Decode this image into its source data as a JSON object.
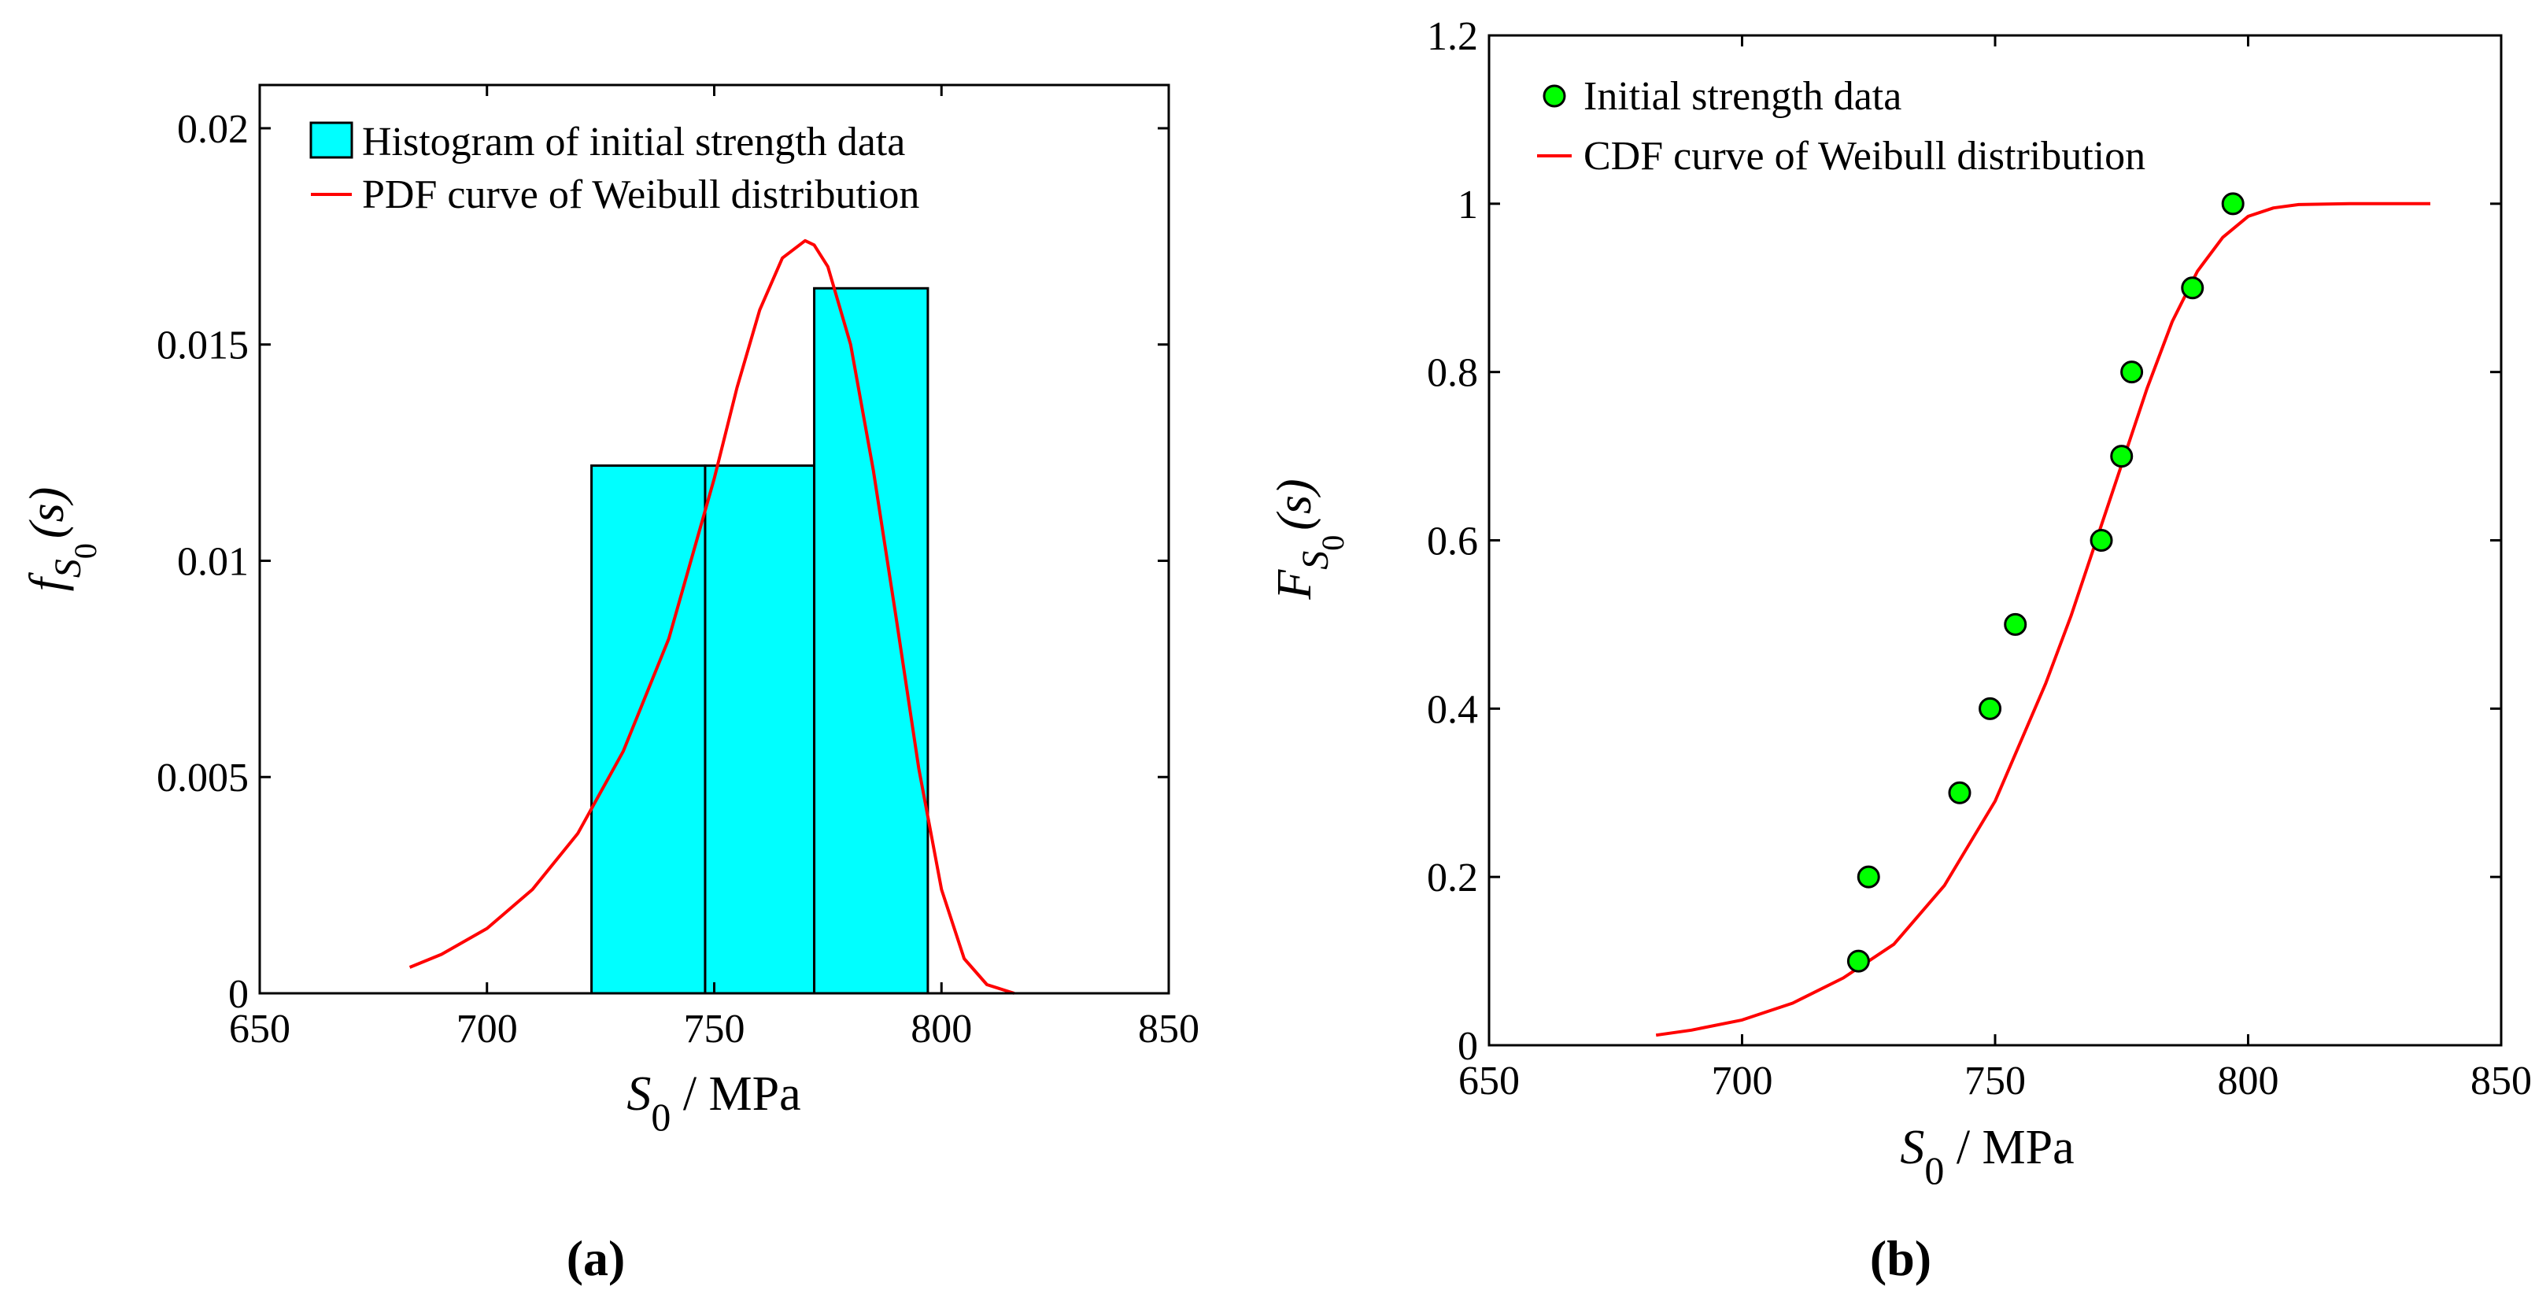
{
  "colors": {
    "histogram_fill": "#00FFFF",
    "curve": "#FF0000",
    "marker_fill": "#00FF00",
    "axis": "#000000"
  },
  "chart_data": [
    {
      "panel": "a",
      "caption": "(a)",
      "type": "bar",
      "xlabel_main": "S",
      "xlabel_sub": "0",
      "xlabel_unit": " / MPa",
      "ylabel_main": "f",
      "ylabel_sub1": "S",
      "ylabel_sub2": "0",
      "ylabel_arg": "(s)",
      "xlim": [
        650,
        850
      ],
      "ylim": [
        0,
        0.021
      ],
      "xticks": [
        650,
        700,
        750,
        800,
        850
      ],
      "xtick_labels": [
        "650",
        "700",
        "750",
        "800",
        "850"
      ],
      "yticks": [
        0,
        0.005,
        0.01,
        0.015,
        0.02
      ],
      "ytick_labels": [
        "0",
        "0.005",
        "0.01",
        "0.015",
        "0.02"
      ],
      "legend": [
        "Histogram of initial strength data",
        "PDF curve of Weibull distribution"
      ],
      "bins": [
        {
          "start": 723,
          "end": 748,
          "value": 0.0122
        },
        {
          "start": 748,
          "end": 772,
          "value": 0.0122
        },
        {
          "start": 772,
          "end": 797,
          "value": 0.0163
        }
      ],
      "curve": {
        "x": [
          683,
          690,
          700,
          710,
          720,
          730,
          740,
          750,
          755,
          760,
          765,
          770,
          772,
          775,
          780,
          785,
          790,
          795,
          800,
          805,
          810,
          816
        ],
        "y": [
          0.0006,
          0.0009,
          0.0015,
          0.0024,
          0.0037,
          0.0056,
          0.0082,
          0.0119,
          0.014,
          0.0158,
          0.017,
          0.0174,
          0.0173,
          0.0168,
          0.015,
          0.0121,
          0.0087,
          0.0052,
          0.0024,
          0.0008,
          0.0002,
          0.0
        ]
      }
    },
    {
      "panel": "b",
      "caption": "(b)",
      "type": "scatter",
      "xlabel_main": "S",
      "xlabel_sub": "0",
      "xlabel_unit": " / MPa",
      "ylabel_main": "F",
      "ylabel_sub1": "S",
      "ylabel_sub2": "0",
      "ylabel_arg": "(s)",
      "xlim": [
        650,
        850
      ],
      "ylim": [
        0,
        1.2
      ],
      "xticks": [
        650,
        700,
        750,
        800,
        850
      ],
      "xtick_labels": [
        "650",
        "700",
        "750",
        "800",
        "850"
      ],
      "yticks": [
        0,
        0.2,
        0.4,
        0.6,
        0.8,
        1,
        1.2
      ],
      "ytick_labels": [
        "0",
        "0.2",
        "0.4",
        "0.6",
        "0.8",
        "1",
        "1.2"
      ],
      "legend": [
        "Initial strength data",
        "CDF curve of Weibull distribution"
      ],
      "points": {
        "x": [
          723,
          725,
          743,
          749,
          754,
          771,
          775,
          777,
          789,
          797
        ],
        "y": [
          0.1,
          0.2,
          0.3,
          0.4,
          0.5,
          0.6,
          0.7,
          0.8,
          0.9,
          1.0
        ]
      },
      "curve": {
        "x": [
          683,
          690,
          700,
          710,
          720,
          730,
          740,
          750,
          760,
          765,
          770,
          775,
          780,
          785,
          790,
          795,
          800,
          805,
          810,
          820,
          836
        ],
        "y": [
          0.012,
          0.018,
          0.03,
          0.05,
          0.08,
          0.12,
          0.19,
          0.29,
          0.43,
          0.51,
          0.6,
          0.69,
          0.78,
          0.86,
          0.92,
          0.96,
          0.985,
          0.995,
          0.999,
          1.0,
          1.0
        ]
      }
    }
  ]
}
